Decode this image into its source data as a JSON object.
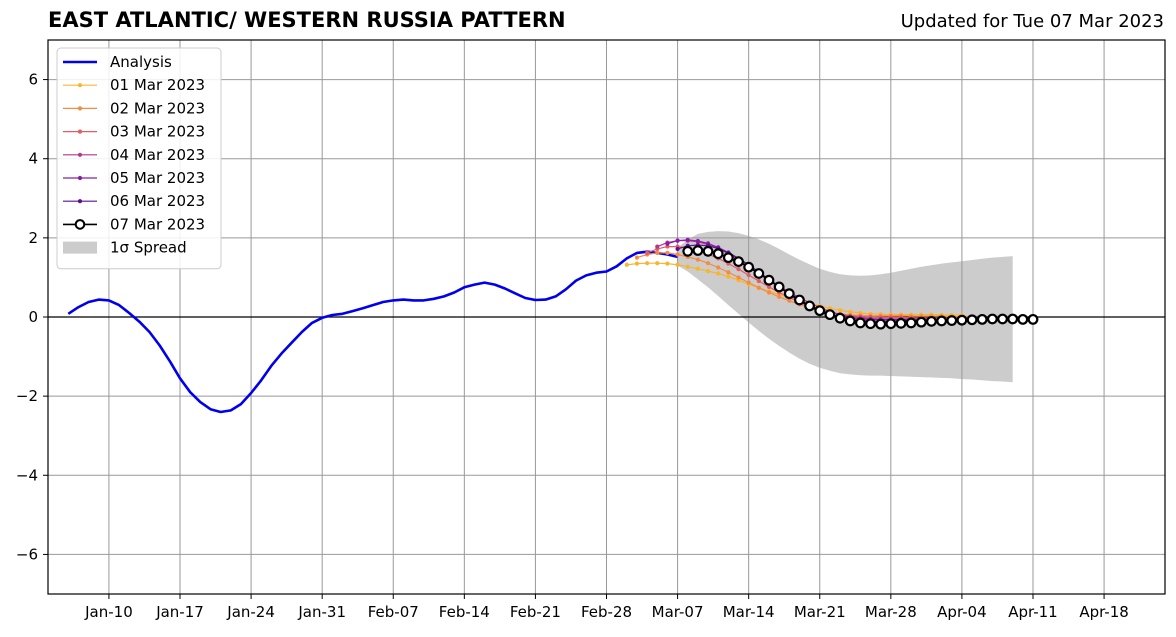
{
  "title": "EAST ATLANTIC/ WESTERN RUSSIA PATTERN",
  "updated": "Updated for Tue 07 Mar 2023",
  "colors": {
    "analysis": "#0000ee",
    "spread": "#cccccc",
    "grid": "#999999",
    "forecasts": [
      "#f9b52b",
      "#f78a42",
      "#e35c63",
      "#b43592",
      "#8a1da5",
      "#5d0f8f",
      "#000000"
    ]
  },
  "chart_data": {
    "type": "line",
    "title": "EAST ATLANTIC/ WESTERN RUSSIA PATTERN",
    "xlabel": "",
    "ylabel": "",
    "xlim": [
      "2023-01-04",
      "2023-04-24"
    ],
    "ylim": [
      -7,
      7
    ],
    "yticks": [
      6,
      4,
      2,
      0,
      -2,
      -4,
      -6
    ],
    "ytick_labels": [
      "6",
      "4",
      "2",
      "0",
      "−2",
      "−4",
      "−6"
    ],
    "xticks": [
      "2023-01-10",
      "2023-01-17",
      "2023-01-24",
      "2023-01-31",
      "2023-02-07",
      "2023-02-14",
      "2023-02-21",
      "2023-02-28",
      "2023-03-07",
      "2023-03-14",
      "2023-03-21",
      "2023-03-28",
      "2023-04-04",
      "2023-04-11",
      "2023-04-18"
    ],
    "xtick_labels": [
      "Jan-10",
      "Jan-17",
      "Jan-24",
      "Jan-31",
      "Feb-07",
      "Feb-14",
      "Feb-21",
      "Feb-28",
      "Mar-07",
      "Mar-14",
      "Mar-21",
      "Mar-28",
      "Apr-04",
      "Apr-11",
      "Apr-18"
    ],
    "grid": true,
    "legend_position": "top-left",
    "analysis": {
      "name": "Analysis",
      "points": [
        [
          "2023-01-06",
          0.08
        ],
        [
          "2023-01-07",
          0.25
        ],
        [
          "2023-01-08",
          0.38
        ],
        [
          "2023-01-09",
          0.44
        ],
        [
          "2023-01-10",
          0.42
        ],
        [
          "2023-01-11",
          0.3
        ],
        [
          "2023-01-12",
          0.1
        ],
        [
          "2023-01-13",
          -0.12
        ],
        [
          "2023-01-14",
          -0.38
        ],
        [
          "2023-01-15",
          -0.72
        ],
        [
          "2023-01-16",
          -1.12
        ],
        [
          "2023-01-17",
          -1.55
        ],
        [
          "2023-01-18",
          -1.9
        ],
        [
          "2023-01-19",
          -2.15
        ],
        [
          "2023-01-20",
          -2.33
        ],
        [
          "2023-01-21",
          -2.4
        ],
        [
          "2023-01-22",
          -2.36
        ],
        [
          "2023-01-23",
          -2.2
        ],
        [
          "2023-01-24",
          -1.92
        ],
        [
          "2023-01-25",
          -1.6
        ],
        [
          "2023-01-26",
          -1.23
        ],
        [
          "2023-01-27",
          -0.92
        ],
        [
          "2023-01-28",
          -0.65
        ],
        [
          "2023-01-29",
          -0.38
        ],
        [
          "2023-01-30",
          -0.15
        ],
        [
          "2023-01-31",
          -0.02
        ],
        [
          "2023-02-01",
          0.05
        ],
        [
          "2023-02-02",
          0.08
        ],
        [
          "2023-02-03",
          0.15
        ],
        [
          "2023-02-04",
          0.22
        ],
        [
          "2023-02-05",
          0.3
        ],
        [
          "2023-02-06",
          0.38
        ],
        [
          "2023-02-07",
          0.42
        ],
        [
          "2023-02-08",
          0.44
        ],
        [
          "2023-02-09",
          0.42
        ],
        [
          "2023-02-10",
          0.42
        ],
        [
          "2023-02-11",
          0.46
        ],
        [
          "2023-02-12",
          0.52
        ],
        [
          "2023-02-13",
          0.62
        ],
        [
          "2023-02-14",
          0.75
        ],
        [
          "2023-02-15",
          0.82
        ],
        [
          "2023-02-16",
          0.87
        ],
        [
          "2023-02-17",
          0.82
        ],
        [
          "2023-02-18",
          0.72
        ],
        [
          "2023-02-19",
          0.6
        ],
        [
          "2023-02-20",
          0.48
        ],
        [
          "2023-02-21",
          0.43
        ],
        [
          "2023-02-22",
          0.44
        ],
        [
          "2023-02-23",
          0.52
        ],
        [
          "2023-02-24",
          0.7
        ],
        [
          "2023-02-25",
          0.92
        ],
        [
          "2023-02-26",
          1.05
        ],
        [
          "2023-02-27",
          1.12
        ],
        [
          "2023-02-28",
          1.15
        ],
        [
          "2023-03-01",
          1.28
        ],
        [
          "2023-03-02",
          1.48
        ],
        [
          "2023-03-03",
          1.62
        ],
        [
          "2023-03-04",
          1.65
        ],
        [
          "2023-03-05",
          1.62
        ],
        [
          "2023-03-06",
          1.58
        ],
        [
          "2023-03-07",
          1.52
        ]
      ]
    },
    "forecasts": [
      {
        "name": "01 Mar 2023",
        "start": "2023-03-02",
        "values": [
          1.32,
          1.35,
          1.36,
          1.36,
          1.35,
          1.32,
          1.27,
          1.22,
          1.16,
          1.1,
          1.02,
          0.93,
          0.83,
          0.74,
          0.65,
          0.57,
          0.49,
          0.42,
          0.35,
          0.28,
          0.22,
          0.17,
          0.13,
          0.1,
          0.08,
          0.07,
          0.06,
          0.06,
          0.06,
          0.06,
          0.06,
          0.05,
          0.05,
          0.05
        ]
      },
      {
        "name": "02 Mar 2023",
        "start": "2023-03-03",
        "values": [
          1.5,
          1.58,
          1.62,
          1.62,
          1.58,
          1.52,
          1.45,
          1.36,
          1.25,
          1.13,
          1.0,
          0.87,
          0.74,
          0.62,
          0.51,
          0.41,
          0.32,
          0.24,
          0.17,
          0.12,
          0.08,
          0.05,
          0.04,
          0.03,
          0.03,
          0.03,
          0.03,
          0.02,
          0.02,
          0.02,
          0.02,
          0.01,
          0.01,
          0.01
        ]
      },
      {
        "name": "03 Mar 2023",
        "start": "2023-03-04",
        "values": [
          1.62,
          1.72,
          1.78,
          1.78,
          1.74,
          1.68,
          1.59,
          1.48,
          1.35,
          1.21,
          1.06,
          0.91,
          0.76,
          0.62,
          0.49,
          0.38,
          0.28,
          0.19,
          0.12,
          0.07,
          0.03,
          0.01,
          0.0,
          -0.01,
          -0.01,
          -0.01,
          -0.02,
          -0.02,
          -0.02,
          -0.02,
          -0.02,
          -0.02,
          -0.02,
          -0.02
        ]
      },
      {
        "name": "04 Mar 2023",
        "start": "2023-03-05",
        "values": [
          1.78,
          1.88,
          1.93,
          1.93,
          1.9,
          1.83,
          1.73,
          1.6,
          1.45,
          1.29,
          1.12,
          0.95,
          0.79,
          0.63,
          0.49,
          0.36,
          0.24,
          0.14,
          0.06,
          0.01,
          -0.02,
          -0.04,
          -0.05,
          -0.05,
          -0.05,
          -0.05,
          -0.05,
          -0.05,
          -0.05,
          -0.05,
          -0.05,
          -0.05,
          -0.05,
          -0.05
        ]
      },
      {
        "name": "05 Mar 2023",
        "start": "2023-03-06",
        "values": [
          1.85,
          1.93,
          1.95,
          1.92,
          1.86,
          1.76,
          1.63,
          1.48,
          1.31,
          1.13,
          0.95,
          0.77,
          0.6,
          0.44,
          0.3,
          0.18,
          0.08,
          0.01,
          -0.03,
          -0.05,
          -0.06,
          -0.06,
          -0.06,
          -0.06,
          -0.06,
          -0.06,
          -0.06,
          -0.06,
          -0.06,
          -0.06,
          -0.06,
          -0.06,
          -0.06,
          -0.06
        ]
      },
      {
        "name": "06 Mar 2023",
        "start": "2023-03-07",
        "values": [
          1.72,
          1.8,
          1.82,
          1.8,
          1.73,
          1.62,
          1.48,
          1.32,
          1.14,
          0.95,
          0.76,
          0.57,
          0.4,
          0.25,
          0.13,
          0.04,
          -0.03,
          -0.07,
          -0.09,
          -0.1,
          -0.1,
          -0.1,
          -0.09,
          -0.09,
          -0.09,
          -0.09,
          -0.08,
          -0.08,
          -0.08,
          -0.08,
          -0.08,
          -0.08,
          -0.08,
          -0.08
        ]
      },
      {
        "name": "07 Mar 2023",
        "start": "2023-03-08",
        "values": [
          1.66,
          1.68,
          1.66,
          1.6,
          1.5,
          1.4,
          1.26,
          1.1,
          0.93,
          0.76,
          0.59,
          0.43,
          0.28,
          0.16,
          0.06,
          -0.03,
          -0.1,
          -0.15,
          -0.17,
          -0.18,
          -0.17,
          -0.16,
          -0.15,
          -0.13,
          -0.11,
          -0.1,
          -0.09,
          -0.08,
          -0.07,
          -0.06,
          -0.05,
          -0.05,
          -0.05,
          -0.06,
          -0.06
        ]
      }
    ],
    "spread": {
      "name": "1σ Spread",
      "start": "2023-03-07",
      "upper": [
        1.75,
        1.95,
        2.1,
        2.15,
        2.17,
        2.16,
        2.12,
        2.05,
        1.96,
        1.85,
        1.72,
        1.58,
        1.45,
        1.33,
        1.22,
        1.14,
        1.08,
        1.05,
        1.04,
        1.05,
        1.08,
        1.12,
        1.17,
        1.22,
        1.27,
        1.31,
        1.35,
        1.38,
        1.41,
        1.44,
        1.47,
        1.5,
        1.52,
        1.54
      ],
      "lower": [
        1.3,
        1.15,
        0.95,
        0.75,
        0.53,
        0.3,
        0.08,
        -0.14,
        -0.35,
        -0.55,
        -0.73,
        -0.9,
        -1.05,
        -1.18,
        -1.28,
        -1.36,
        -1.42,
        -1.45,
        -1.47,
        -1.48,
        -1.48,
        -1.49,
        -1.5,
        -1.51,
        -1.52,
        -1.53,
        -1.54,
        -1.55,
        -1.57,
        -1.58,
        -1.6,
        -1.62,
        -1.63,
        -1.65
      ]
    }
  }
}
